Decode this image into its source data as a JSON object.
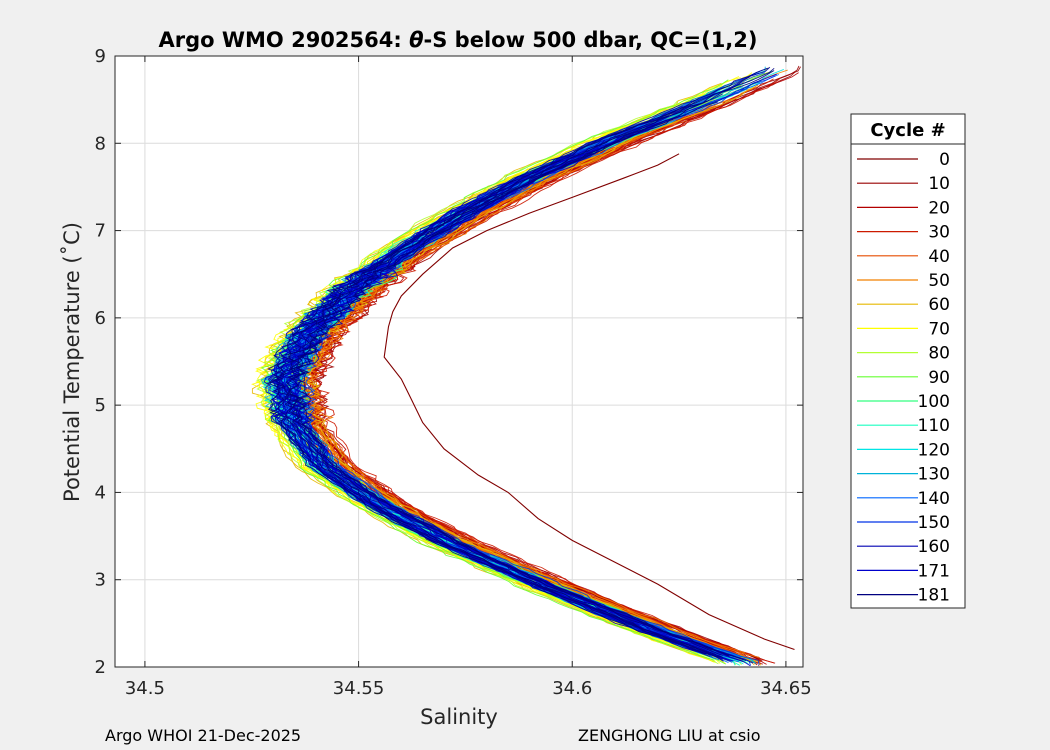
{
  "chart_data": {
    "type": "line",
    "title_prefix": "Argo WMO 2902564: ",
    "title_theta": "θ",
    "title_suffix": "-S below 500 dbar,  QC=(1,2)",
    "xlabel": "Salinity",
    "ylabel": "Potential Temperature (˚C)",
    "xlim": [
      34.493,
      34.654
    ],
    "ylim": [
      2,
      9
    ],
    "xticks": [
      34.5,
      34.55,
      34.6,
      34.65
    ],
    "xtick_labels": [
      "34.5",
      "34.55",
      "34.6",
      "34.65"
    ],
    "yticks": [
      2,
      3,
      4,
      5,
      6,
      7,
      8,
      9
    ],
    "ytick_labels": [
      "2",
      "3",
      "4",
      "5",
      "6",
      "7",
      "8",
      "9"
    ],
    "grid": true,
    "legend": {
      "title": "Cycle #",
      "position": "right",
      "entries": [
        {
          "label": "0",
          "color": "#800000"
        },
        {
          "label": "10",
          "color": "#990000"
        },
        {
          "label": "20",
          "color": "#b30000"
        },
        {
          "label": "30",
          "color": "#cc1a00"
        },
        {
          "label": "40",
          "color": "#e64d00"
        },
        {
          "label": "50",
          "color": "#f28000"
        },
        {
          "label": "60",
          "color": "#e6b800"
        },
        {
          "label": "70",
          "color": "#ffff00"
        },
        {
          "label": "80",
          "color": "#b3ff33"
        },
        {
          "label": "90",
          "color": "#66ff33"
        },
        {
          "label": "100",
          "color": "#33ff80"
        },
        {
          "label": "110",
          "color": "#1affc0"
        },
        {
          "label": "120",
          "color": "#00e6e6"
        },
        {
          "label": "130",
          "color": "#00b3d9"
        },
        {
          "label": "140",
          "color": "#0066ff"
        },
        {
          "label": "150",
          "color": "#0033e6"
        },
        {
          "label": "160",
          "color": "#0000b3"
        },
        {
          "label": "171",
          "color": "#0000cc"
        },
        {
          "label": "181",
          "color": "#000080"
        }
      ]
    },
    "outlier_profile": {
      "cycle": "0",
      "color": "#800000",
      "points": [
        [
          34.625,
          7.88
        ],
        [
          34.62,
          7.75
        ],
        [
          34.612,
          7.6
        ],
        [
          34.6,
          7.38
        ],
        [
          34.59,
          7.2
        ],
        [
          34.58,
          7.0
        ],
        [
          34.572,
          6.8
        ],
        [
          34.565,
          6.5
        ],
        [
          34.56,
          6.25
        ],
        [
          34.558,
          6.07
        ],
        [
          34.557,
          5.9
        ],
        [
          34.556,
          5.55
        ],
        [
          34.56,
          5.3
        ],
        [
          34.562,
          5.1
        ],
        [
          34.565,
          4.8
        ],
        [
          34.57,
          4.5
        ],
        [
          34.578,
          4.2
        ],
        [
          34.585,
          4.0
        ],
        [
          34.592,
          3.7
        ],
        [
          34.6,
          3.45
        ],
        [
          34.61,
          3.2
        ],
        [
          34.62,
          2.95
        ],
        [
          34.632,
          2.6
        ],
        [
          34.645,
          2.32
        ],
        [
          34.652,
          2.2
        ]
      ]
    },
    "envelope": {
      "description": "median theta-S curve of remaining profiles (cycles 1-181)",
      "points": [
        [
          34.648,
          8.85
        ],
        [
          34.63,
          8.45
        ],
        [
          34.61,
          8.05
        ],
        [
          34.59,
          7.6
        ],
        [
          34.575,
          7.2
        ],
        [
          34.56,
          6.75
        ],
        [
          34.548,
          6.3
        ],
        [
          34.538,
          5.8
        ],
        [
          34.533,
          5.3
        ],
        [
          34.535,
          4.8
        ],
        [
          34.542,
          4.3
        ],
        [
          34.555,
          3.85
        ],
        [
          34.572,
          3.4
        ],
        [
          34.595,
          2.9
        ],
        [
          34.62,
          2.4
        ],
        [
          34.64,
          2.05
        ]
      ]
    }
  },
  "footer": {
    "left": "Argo WHOI 21-Dec-2025",
    "right": "ZENGHONG LIU at csio"
  }
}
